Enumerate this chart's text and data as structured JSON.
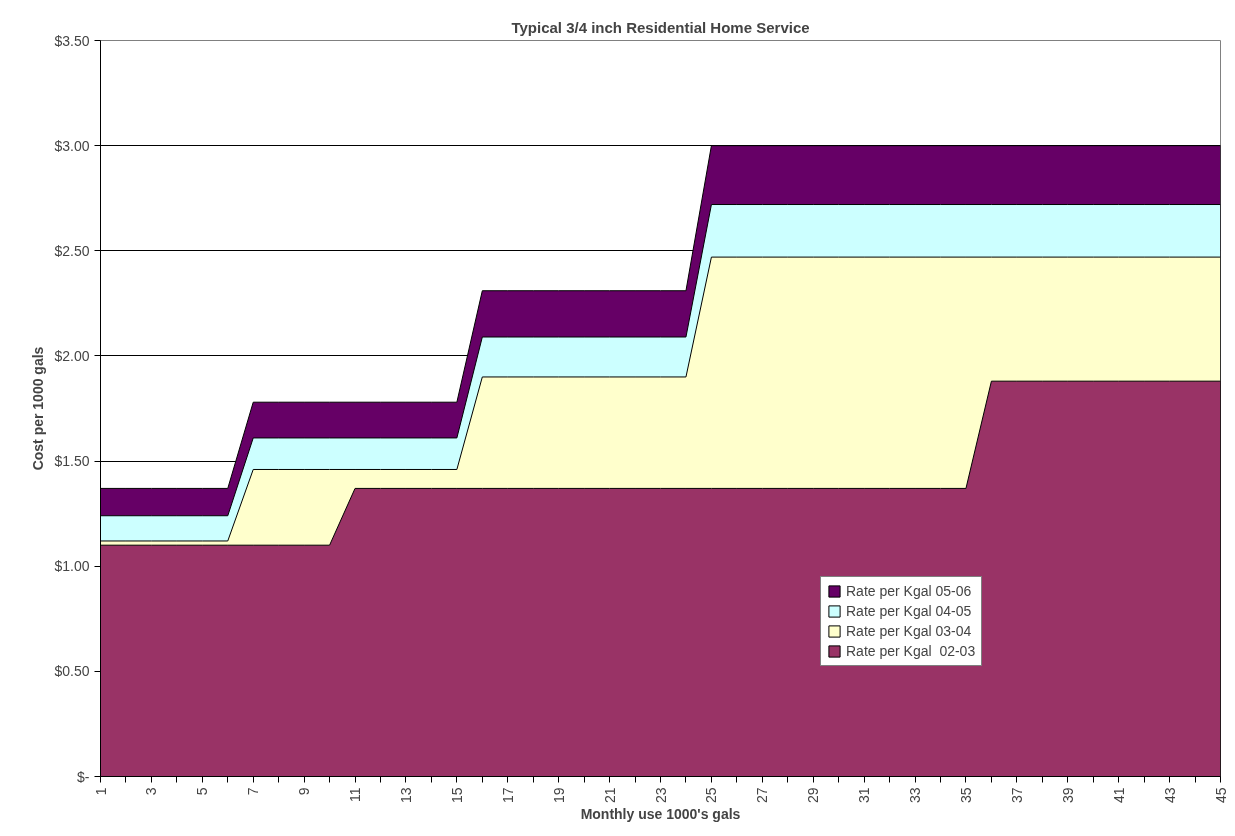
{
  "chart_data": {
    "type": "area",
    "title": "Typical 3/4 inch Residential Home Service",
    "xlabel": "Monthly use 1000's gals",
    "ylabel": "Cost per 1000 gals",
    "categories": [
      "1",
      null,
      "3",
      null,
      "5",
      null,
      "7",
      null,
      "9",
      null,
      "11",
      null,
      "13",
      null,
      "15",
      null,
      "17",
      null,
      "19",
      null,
      "21",
      null,
      "23",
      null,
      "25",
      null,
      "27",
      null,
      "29",
      null,
      "31",
      null,
      "33",
      null,
      "35",
      null,
      "37",
      null,
      "39",
      null,
      "41",
      null,
      "43",
      null,
      "45"
    ],
    "series": [
      {
        "name": "Rate per Kgal 05-06",
        "color": "#660066",
        "values": [
          1.37,
          1.37,
          1.37,
          1.37,
          1.37,
          1.37,
          1.78,
          1.78,
          1.78,
          1.78,
          1.78,
          1.78,
          1.78,
          1.78,
          1.78,
          2.31,
          2.31,
          2.31,
          2.31,
          2.31,
          2.31,
          2.31,
          2.31,
          2.31,
          3.0,
          3.0,
          3.0,
          3.0,
          3.0,
          3.0,
          3.0,
          3.0,
          3.0,
          3.0,
          3.0,
          3.0,
          3.0,
          3.0,
          3.0,
          3.0,
          3.0,
          3.0,
          3.0,
          3.0,
          3.0
        ]
      },
      {
        "name": "Rate per Kgal 04-05",
        "color": "#ccffff",
        "values": [
          1.24,
          1.24,
          1.24,
          1.24,
          1.24,
          1.24,
          1.61,
          1.61,
          1.61,
          1.61,
          1.61,
          1.61,
          1.61,
          1.61,
          1.61,
          2.09,
          2.09,
          2.09,
          2.09,
          2.09,
          2.09,
          2.09,
          2.09,
          2.09,
          2.72,
          2.72,
          2.72,
          2.72,
          2.72,
          2.72,
          2.72,
          2.72,
          2.72,
          2.72,
          2.72,
          2.72,
          2.72,
          2.72,
          2.72,
          2.72,
          2.72,
          2.72,
          2.72,
          2.72,
          2.72
        ]
      },
      {
        "name": "Rate per Kgal 03-04",
        "color": "#ffffcc",
        "values": [
          1.12,
          1.12,
          1.12,
          1.12,
          1.12,
          1.12,
          1.46,
          1.46,
          1.46,
          1.46,
          1.46,
          1.46,
          1.46,
          1.46,
          1.46,
          1.9,
          1.9,
          1.9,
          1.9,
          1.9,
          1.9,
          1.9,
          1.9,
          1.9,
          2.47,
          2.47,
          2.47,
          2.47,
          2.47,
          2.47,
          2.47,
          2.47,
          2.47,
          2.47,
          2.47,
          2.47,
          2.47,
          2.47,
          2.47,
          2.47,
          2.47,
          2.47,
          2.47,
          2.47,
          2.47
        ]
      },
      {
        "name": "Rate per Kgal  02-03",
        "color": "#993366",
        "values": [
          1.1,
          1.1,
          1.1,
          1.1,
          1.1,
          1.1,
          1.1,
          1.1,
          1.1,
          1.1,
          1.37,
          1.37,
          1.37,
          1.37,
          1.37,
          1.37,
          1.37,
          1.37,
          1.37,
          1.37,
          1.37,
          1.37,
          1.37,
          1.37,
          1.37,
          1.37,
          1.37,
          1.37,
          1.37,
          1.37,
          1.37,
          1.37,
          1.37,
          1.37,
          1.37,
          1.88,
          1.88,
          1.88,
          1.88,
          1.88,
          1.88,
          1.88,
          1.88,
          1.88,
          1.88
        ]
      }
    ],
    "ylim": [
      0,
      3.5
    ],
    "yticks": [
      {
        "value": 0,
        "label": "$-"
      },
      {
        "value": 0.5,
        "label": "$0.50"
      },
      {
        "value": 1,
        "label": "$1.00"
      },
      {
        "value": 1.5,
        "label": "$1.50"
      },
      {
        "value": 2,
        "label": "$2.00"
      },
      {
        "value": 2.5,
        "label": "$2.50"
      },
      {
        "value": 3,
        "label": "$3.00"
      },
      {
        "value": 3.5,
        "label": "$3.50"
      }
    ],
    "grid": "y",
    "legend": "right"
  }
}
